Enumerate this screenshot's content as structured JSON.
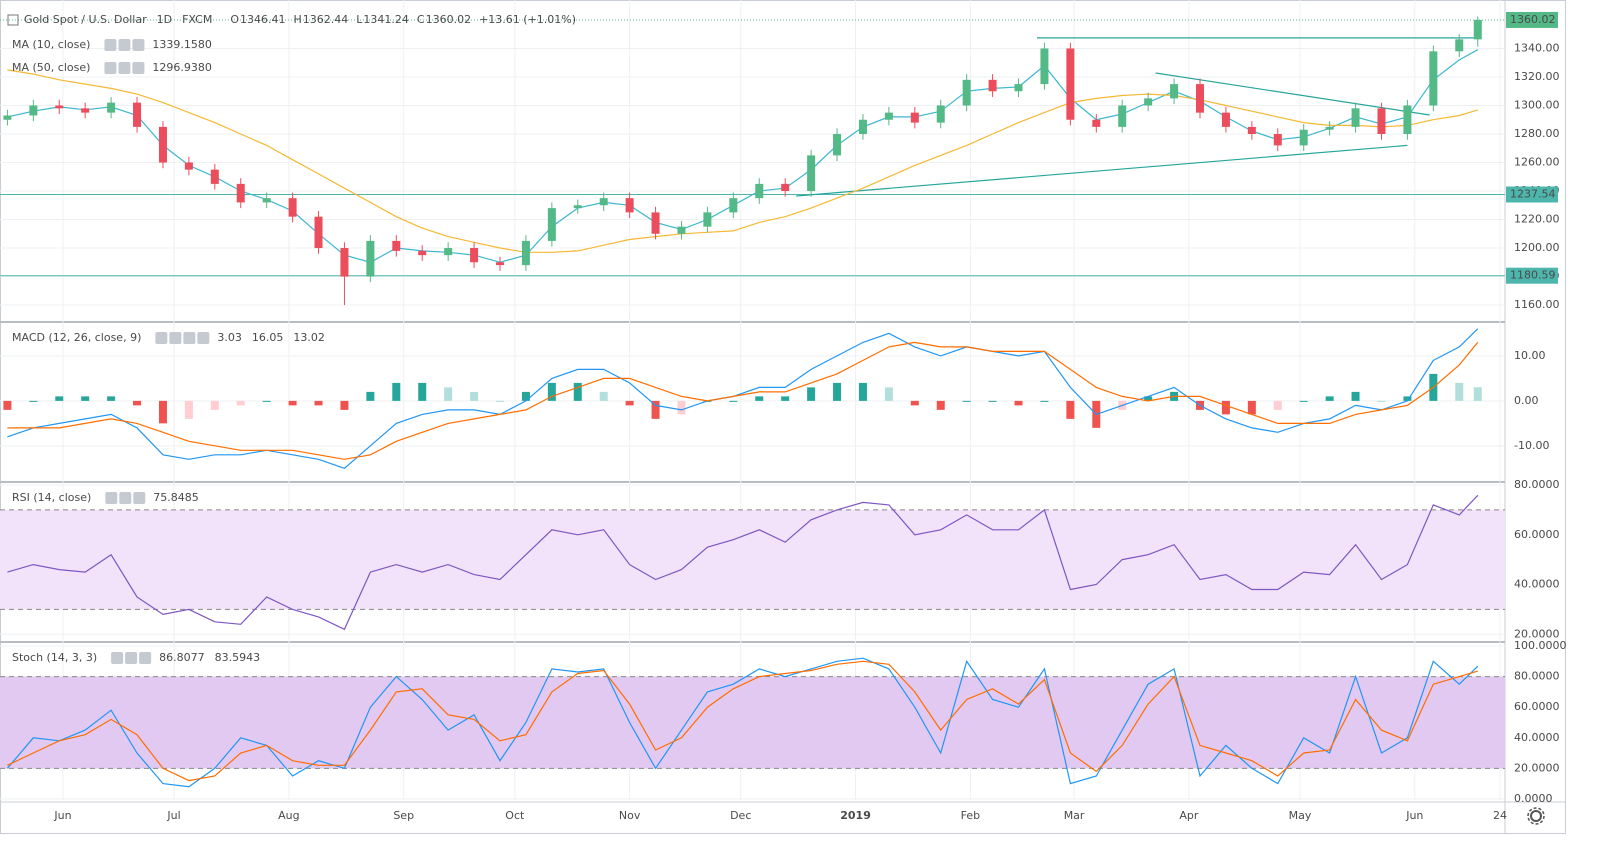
{
  "chart_data": [
    {
      "type": "candlestick",
      "title": "Gold Spot / U.S. Dollar",
      "interval": "1D",
      "source": "FXCM",
      "ohlc_prefixes": [
        "O",
        "H",
        "L",
        "C"
      ],
      "change": "+13.61 (+1.01%)",
      "up_color": "#53b987",
      "down_color": "#eb4d5c",
      "x": [
        2,
        9,
        16,
        23,
        30,
        37,
        44,
        51,
        58,
        65,
        72,
        79,
        86,
        93,
        100,
        107,
        114,
        121,
        128,
        135,
        142,
        149,
        156,
        163,
        170,
        177,
        184,
        191,
        198,
        205,
        212,
        219,
        226,
        233,
        240,
        247,
        254,
        261,
        268,
        275,
        282,
        289,
        296,
        303,
        310,
        317,
        324,
        331,
        338,
        345,
        352,
        359,
        366,
        373,
        380,
        387,
        394,
        399
      ],
      "open": [
        1290,
        1293,
        1300,
        1298,
        1295,
        1302,
        1285,
        1260,
        1255,
        1245,
        1232,
        1235,
        1222,
        1200,
        1180,
        1205,
        1198,
        1195,
        1200,
        1190,
        1188,
        1205,
        1228,
        1230,
        1235,
        1225,
        1210,
        1215,
        1225,
        1235,
        1245,
        1240,
        1265,
        1280,
        1290,
        1295,
        1288,
        1300,
        1318,
        1310,
        1315,
        1340,
        1290,
        1285,
        1300,
        1305,
        1315,
        1295,
        1285,
        1280,
        1272,
        1283,
        1285,
        1298,
        1280,
        1300,
        1338,
        1346.41
      ],
      "high": [
        1297,
        1304,
        1304,
        1302,
        1306,
        1306,
        1289,
        1264,
        1259,
        1249,
        1239,
        1239,
        1226,
        1204,
        1209,
        1209,
        1202,
        1204,
        1204,
        1194,
        1209,
        1232,
        1234,
        1239,
        1239,
        1229,
        1219,
        1229,
        1239,
        1249,
        1249,
        1269,
        1284,
        1294,
        1299,
        1299,
        1304,
        1322,
        1322,
        1319,
        1344,
        1344,
        1294,
        1304,
        1309,
        1319,
        1319,
        1299,
        1289,
        1284,
        1287,
        1289,
        1302,
        1302,
        1304,
        1342,
        1350,
        1362.44
      ],
      "low": [
        1286,
        1289,
        1294,
        1291,
        1291,
        1281,
        1256,
        1251,
        1241,
        1228,
        1228,
        1218,
        1196,
        1160,
        1176,
        1194,
        1191,
        1191,
        1186,
        1184,
        1184,
        1201,
        1224,
        1226,
        1221,
        1206,
        1206,
        1211,
        1221,
        1231,
        1236,
        1236,
        1261,
        1276,
        1286,
        1284,
        1284,
        1296,
        1306,
        1306,
        1311,
        1286,
        1281,
        1281,
        1296,
        1301,
        1291,
        1281,
        1276,
        1268,
        1268,
        1279,
        1281,
        1276,
        1276,
        1296,
        1334,
        1341.24
      ],
      "close": [
        1293,
        1300,
        1298,
        1295,
        1302,
        1285,
        1260,
        1255,
        1245,
        1232,
        1235,
        1222,
        1200,
        1180,
        1205,
        1198,
        1195,
        1200,
        1190,
        1188,
        1205,
        1228,
        1230,
        1235,
        1225,
        1210,
        1215,
        1225,
        1235,
        1245,
        1240,
        1265,
        1280,
        1290,
        1295,
        1288,
        1300,
        1318,
        1310,
        1315,
        1340,
        1290,
        1285,
        1300,
        1305,
        1315,
        1295,
        1285,
        1280,
        1272,
        1283,
        1285,
        1298,
        1280,
        1300,
        1338,
        1346.41,
        1360.02
      ],
      "series": [
        {
          "name": "MA (10, close)",
          "color": "#3cb7d0",
          "last_label": "1339.1580",
          "values": [
            1292,
            1296,
            1299,
            1297,
            1299,
            1293,
            1272,
            1258,
            1250,
            1240,
            1234,
            1226,
            1210,
            1195,
            1190,
            1200,
            1198,
            1197,
            1195,
            1190,
            1195,
            1215,
            1228,
            1232,
            1230,
            1218,
            1213,
            1220,
            1230,
            1240,
            1242,
            1255,
            1272,
            1285,
            1292,
            1292,
            1296,
            1310,
            1312,
            1313,
            1328,
            1305,
            1290,
            1294,
            1302,
            1310,
            1303,
            1292,
            1282,
            1276,
            1278,
            1284,
            1292,
            1287,
            1292,
            1318,
            1332,
            1339.158
          ]
        },
        {
          "name": "MA (50, close)",
          "color": "#f5b833",
          "last_label": "1296.9380",
          "values": [
            1325,
            1322,
            1318,
            1315,
            1312,
            1308,
            1302,
            1295,
            1288,
            1280,
            1272,
            1262,
            1252,
            1242,
            1232,
            1222,
            1214,
            1208,
            1204,
            1200,
            1197,
            1197,
            1198,
            1202,
            1206,
            1208,
            1210,
            1211,
            1212,
            1218,
            1222,
            1228,
            1235,
            1242,
            1250,
            1258,
            1265,
            1272,
            1280,
            1288,
            1295,
            1302,
            1305,
            1307,
            1308,
            1307,
            1304,
            1300,
            1296,
            1292,
            1288,
            1286,
            1286,
            1285,
            1286,
            1290,
            1293,
            1296.938
          ]
        }
      ],
      "levels": [
        {
          "value": 1237.54,
          "color": "#4db6ac"
        },
        {
          "value": 1180.59,
          "color": "#4db6ac"
        }
      ],
      "trend_lines": [
        {
          "x": [
            280,
            399
          ],
          "y": [
            1347.4,
            1347.4
          ]
        },
        {
          "x": [
            215,
            380
          ],
          "y": [
            1236.5,
            1272
          ]
        },
        {
          "x": [
            312,
            386
          ],
          "y": [
            1322.8,
            1293.3
          ]
        }
      ],
      "trend_color": "#26a69a",
      "xlim": [
        0,
        405
      ],
      "xticks": [
        {
          "value": 17,
          "label": "Jun"
        },
        {
          "value": 47,
          "label": "Jul"
        },
        {
          "value": 78,
          "label": "Aug"
        },
        {
          "value": 109,
          "label": "Sep"
        },
        {
          "value": 139,
          "label": "Oct"
        },
        {
          "value": 170,
          "label": "Nov"
        },
        {
          "value": 200,
          "label": "Dec"
        },
        {
          "value": 231,
          "label": "2019"
        },
        {
          "value": 262,
          "label": "Feb"
        },
        {
          "value": 290,
          "label": "Mar"
        },
        {
          "value": 321,
          "label": "Apr"
        },
        {
          "value": 351,
          "label": "May"
        },
        {
          "value": 382,
          "label": "Jun"
        },
        {
          "value": 405,
          "label": "24"
        }
      ],
      "ylim": [
        1149.5,
        1367
      ],
      "yticks": [
        {
          "value": 1160,
          "label": "1160.00"
        },
        {
          "value": 1180,
          "label": "1180.00"
        },
        {
          "value": 1200,
          "label": "1200.00"
        },
        {
          "value": 1220,
          "label": "1220.00"
        },
        {
          "value": 1240,
          "label": "1240.00"
        },
        {
          "value": 1260,
          "label": "1260.00"
        },
        {
          "value": 1280,
          "label": "1280.00"
        },
        {
          "value": 1300,
          "label": "1300.00"
        },
        {
          "value": 1320,
          "label": "1320.00"
        },
        {
          "value": 1340,
          "label": "1340.00"
        }
      ],
      "grid": true
    },
    {
      "type": "macd",
      "title": "MACD (12, 26, close, 9)",
      "histogram": {
        "colors": [
          "#26a69a",
          "#b2dfdb",
          "#ef5350",
          "#ffcdd2"
        ],
        "values": [
          -2,
          0,
          1,
          1,
          1,
          -1,
          -5,
          -4,
          -2,
          -1,
          0,
          -1,
          -1,
          -2,
          2,
          4,
          4,
          3,
          2,
          0,
          2,
          4,
          4,
          2,
          -1,
          -4,
          -3,
          0,
          0,
          1,
          1,
          3,
          4,
          4,
          3,
          -1,
          -2,
          0,
          0,
          -1,
          0,
          -4,
          -6,
          -2,
          1,
          2,
          -2,
          -3,
          -3,
          -2,
          0,
          1,
          2,
          0,
          1,
          6,
          4,
          3.03
        ]
      },
      "series": [
        {
          "name": "MACD",
          "color": "#2196f3",
          "values": [
            -8,
            -6,
            -5,
            -4,
            -3,
            -6,
            -12,
            -13,
            -12,
            -12,
            -11,
            -12,
            -13,
            -15,
            -10,
            -5,
            -3,
            -2,
            -2,
            -3,
            0,
            5,
            7,
            7,
            4,
            -1,
            -2,
            0,
            1,
            3,
            3,
            7,
            10,
            13,
            15,
            12,
            10,
            12,
            11,
            10,
            11,
            3,
            -3,
            -1,
            1,
            3,
            -1,
            -4,
            -6,
            -7,
            -5,
            -4,
            -1,
            -2,
            0,
            9,
            12,
            16.05
          ]
        },
        {
          "name": "Signal",
          "color": "#ff6d00",
          "values": [
            -6,
            -6,
            -6,
            -5,
            -4,
            -5,
            -7,
            -9,
            -10,
            -11,
            -11,
            -11,
            -12,
            -13,
            -12,
            -9,
            -7,
            -5,
            -4,
            -3,
            -2,
            1,
            3,
            5,
            5,
            3,
            1,
            0,
            1,
            2,
            2,
            4,
            6,
            9,
            12,
            13,
            12,
            12,
            11,
            11,
            11,
            7,
            3,
            1,
            0,
            1,
            1,
            -1,
            -3,
            -5,
            -5,
            -5,
            -3,
            -2,
            -1,
            3,
            8,
            13.02
          ]
        }
      ],
      "ylim": [
        -17.6,
        17.1
      ],
      "yticks": [
        {
          "value": -10,
          "label": "-10.00"
        },
        {
          "value": 0,
          "label": "0.00"
        },
        {
          "value": 10,
          "label": "10.00"
        }
      ],
      "grid": true
    },
    {
      "type": "line",
      "title": "RSI (14, close)",
      "band": [
        30,
        70
      ],
      "band_color": "#f3e3fa",
      "series": [
        {
          "name": "RSI",
          "color": "#7e57c2",
          "values": [
            45,
            48,
            46,
            45,
            52,
            35,
            28,
            30,
            25,
            24,
            35,
            30,
            27,
            22,
            45,
            48,
            45,
            48,
            44,
            42,
            52,
            62,
            60,
            62,
            48,
            42,
            46,
            55,
            58,
            62,
            57,
            66,
            70,
            73,
            72,
            60,
            62,
            68,
            62,
            62,
            70,
            38,
            40,
            50,
            52,
            56,
            42,
            44,
            38,
            38,
            45,
            44,
            56,
            42,
            48,
            72,
            68,
            75.8485
          ]
        }
      ],
      "ylim": [
        17.7,
        80.4
      ],
      "yticks": [
        {
          "value": 20,
          "label": "20.0000"
        },
        {
          "value": 40,
          "label": "40.0000"
        },
        {
          "value": 60,
          "label": "60.0000"
        },
        {
          "value": 80,
          "label": "80.0000"
        }
      ],
      "grid": true
    },
    {
      "type": "line",
      "title": "Stoch (14, 3, 3)",
      "band": [
        20,
        80
      ],
      "band_color": "#e2c9f1",
      "series": [
        {
          "name": "%K",
          "color": "#2196f3",
          "values": [
            20,
            40,
            38,
            45,
            58,
            30,
            10,
            8,
            20,
            40,
            35,
            15,
            25,
            20,
            60,
            80,
            65,
            45,
            55,
            25,
            50,
            85,
            83,
            85,
            50,
            20,
            45,
            70,
            75,
            85,
            80,
            85,
            90,
            92,
            85,
            60,
            30,
            90,
            65,
            60,
            85,
            10,
            15,
            45,
            75,
            85,
            15,
            35,
            20,
            10,
            40,
            30,
            80,
            30,
            40,
            90,
            75,
            86.8077
          ]
        },
        {
          "name": "%D",
          "color": "#ff6d00",
          "values": [
            22,
            30,
            38,
            42,
            52,
            42,
            20,
            12,
            15,
            30,
            35,
            25,
            22,
            22,
            45,
            70,
            72,
            55,
            52,
            38,
            42,
            70,
            82,
            84,
            62,
            32,
            40,
            60,
            72,
            80,
            82,
            84,
            88,
            90,
            88,
            70,
            45,
            65,
            72,
            62,
            78,
            30,
            18,
            35,
            62,
            80,
            35,
            30,
            25,
            15,
            30,
            32,
            65,
            45,
            38,
            75,
            80,
            83.5943
          ]
        }
      ],
      "ylim": [
        -0.7,
        101.3
      ],
      "yticks": [
        {
          "value": 0,
          "label": "0.0000"
        },
        {
          "value": 20,
          "label": "20.0000"
        },
        {
          "value": 40,
          "label": "40.0000"
        },
        {
          "value": 60,
          "label": "60.0000"
        },
        {
          "value": 80,
          "label": "80.0000"
        },
        {
          "value": 100,
          "label": "100.0000"
        }
      ],
      "grid": true
    }
  ]
}
